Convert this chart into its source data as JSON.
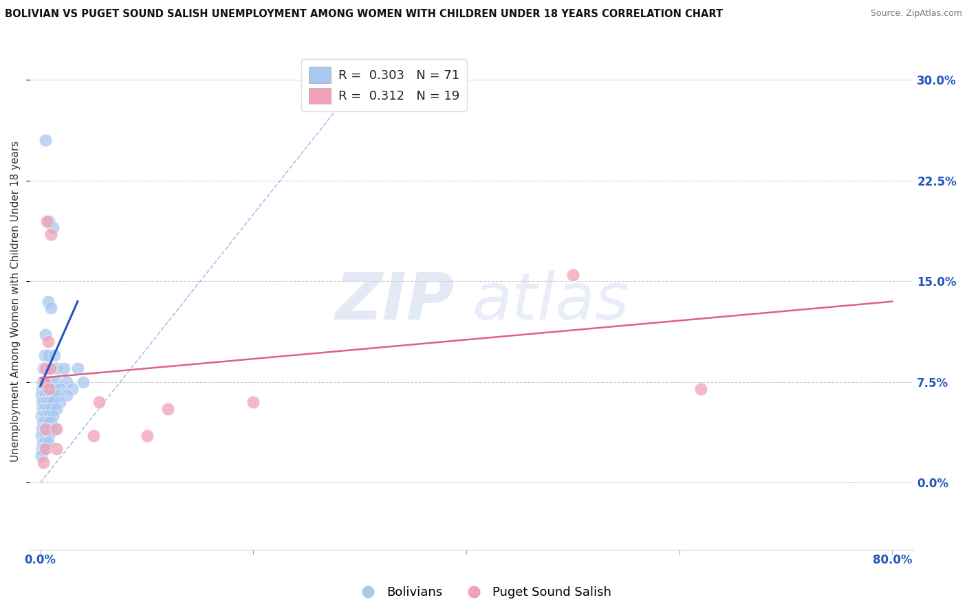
{
  "title": "BOLIVIAN VS PUGET SOUND SALISH UNEMPLOYMENT AMONG WOMEN WITH CHILDREN UNDER 18 YEARS CORRELATION CHART",
  "source": "Source: ZipAtlas.com",
  "ylabel": "Unemployment Among Women with Children Under 18 years",
  "yticks_pct": [
    "0.0%",
    "7.5%",
    "15.0%",
    "22.5%",
    "30.0%"
  ],
  "ytick_vals": [
    0.0,
    7.5,
    15.0,
    22.5,
    30.0
  ],
  "xlim": [
    -1.0,
    82.0
  ],
  "ylim": [
    -5.0,
    32.0
  ],
  "yaxis_min": 0.0,
  "yaxis_max": 30.0,
  "xaxis_label_left": "0.0%",
  "xaxis_label_right": "80.0%",
  "legend_blue_r": "0.303",
  "legend_blue_n": "71",
  "legend_pink_r": "0.312",
  "legend_pink_n": "19",
  "blue_color": "#a8c8f0",
  "pink_color": "#f0a0b8",
  "blue_line_color": "#2255bb",
  "pink_line_color": "#e06080",
  "diagonal_color": "#99bbee",
  "watermark_zip": "ZIP",
  "watermark_atlas": "atlas",
  "title_fontsize": 10.5,
  "source_fontsize": 9,
  "axis_label_fontsize": 11,
  "tick_fontsize": 12,
  "legend_fontsize": 13,
  "blue_scatter": [
    [
      0.5,
      25.5
    ],
    [
      0.8,
      19.5
    ],
    [
      1.2,
      19.0
    ],
    [
      0.7,
      13.5
    ],
    [
      1.0,
      13.0
    ],
    [
      0.5,
      11.0
    ],
    [
      0.4,
      9.5
    ],
    [
      0.7,
      9.5
    ],
    [
      1.3,
      9.5
    ],
    [
      0.3,
      8.5
    ],
    [
      0.6,
      8.5
    ],
    [
      0.9,
      8.5
    ],
    [
      1.5,
      8.5
    ],
    [
      2.2,
      8.5
    ],
    [
      3.5,
      8.5
    ],
    [
      0.2,
      7.5
    ],
    [
      0.4,
      7.5
    ],
    [
      0.7,
      7.5
    ],
    [
      1.0,
      7.5
    ],
    [
      1.5,
      7.5
    ],
    [
      2.5,
      7.5
    ],
    [
      4.0,
      7.5
    ],
    [
      0.15,
      7.0
    ],
    [
      0.35,
      7.0
    ],
    [
      0.6,
      7.0
    ],
    [
      0.9,
      7.0
    ],
    [
      1.2,
      7.0
    ],
    [
      1.8,
      7.0
    ],
    [
      3.0,
      7.0
    ],
    [
      0.1,
      6.5
    ],
    [
      0.3,
      6.5
    ],
    [
      0.5,
      6.5
    ],
    [
      0.8,
      6.5
    ],
    [
      1.1,
      6.5
    ],
    [
      1.6,
      6.5
    ],
    [
      2.5,
      6.5
    ],
    [
      0.15,
      6.0
    ],
    [
      0.3,
      6.0
    ],
    [
      0.55,
      6.0
    ],
    [
      0.8,
      6.0
    ],
    [
      1.2,
      6.0
    ],
    [
      1.8,
      6.0
    ],
    [
      0.2,
      5.5
    ],
    [
      0.4,
      5.5
    ],
    [
      0.7,
      5.5
    ],
    [
      1.0,
      5.5
    ],
    [
      1.5,
      5.5
    ],
    [
      0.1,
      5.0
    ],
    [
      0.3,
      5.0
    ],
    [
      0.5,
      5.0
    ],
    [
      0.8,
      5.0
    ],
    [
      1.2,
      5.0
    ],
    [
      0.2,
      4.5
    ],
    [
      0.4,
      4.5
    ],
    [
      0.7,
      4.5
    ],
    [
      1.0,
      4.5
    ],
    [
      0.15,
      4.0
    ],
    [
      0.35,
      4.0
    ],
    [
      0.6,
      4.0
    ],
    [
      0.9,
      4.0
    ],
    [
      1.4,
      4.0
    ],
    [
      0.1,
      3.5
    ],
    [
      0.3,
      3.5
    ],
    [
      0.5,
      3.5
    ],
    [
      0.8,
      3.5
    ],
    [
      0.2,
      3.0
    ],
    [
      0.4,
      3.0
    ],
    [
      0.7,
      3.0
    ],
    [
      0.15,
      2.5
    ],
    [
      0.35,
      2.5
    ],
    [
      0.1,
      2.0
    ]
  ],
  "pink_scatter": [
    [
      0.6,
      19.5
    ],
    [
      1.0,
      18.5
    ],
    [
      0.7,
      10.5
    ],
    [
      0.5,
      8.5
    ],
    [
      0.9,
      8.5
    ],
    [
      0.4,
      7.5
    ],
    [
      0.8,
      7.0
    ],
    [
      5.5,
      6.0
    ],
    [
      12.0,
      5.5
    ],
    [
      20.0,
      6.0
    ],
    [
      50.0,
      15.5
    ],
    [
      62.0,
      7.0
    ],
    [
      0.5,
      4.0
    ],
    [
      1.5,
      4.0
    ],
    [
      5.0,
      3.5
    ],
    [
      10.0,
      3.5
    ],
    [
      0.5,
      2.5
    ],
    [
      1.5,
      2.5
    ],
    [
      0.3,
      1.5
    ]
  ],
  "blue_line": [
    [
      0.0,
      7.2
    ],
    [
      3.5,
      13.5
    ]
  ],
  "pink_line": [
    [
      0.0,
      7.8
    ],
    [
      80.0,
      13.5
    ]
  ],
  "diag_line": [
    [
      0.0,
      0.0
    ],
    [
      30.0,
      30.0
    ]
  ]
}
